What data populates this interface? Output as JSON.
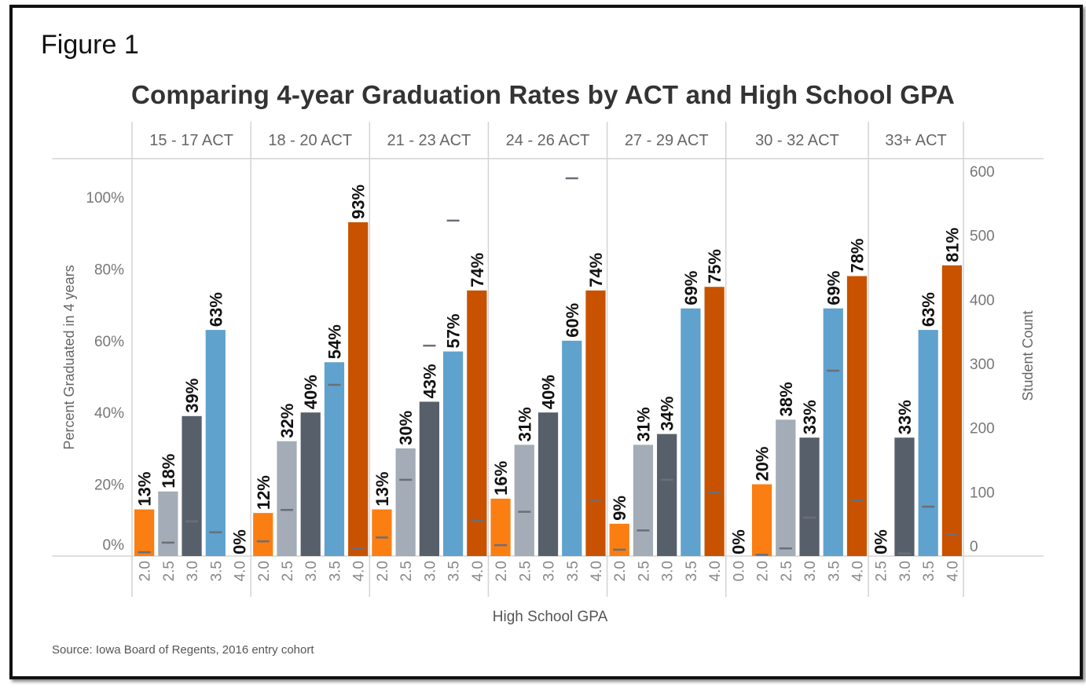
{
  "figure_label": "Figure 1",
  "source": "Source: Iowa Board of Regents, 2016 entry cohort",
  "chart_data": {
    "type": "bar",
    "title": "Comparing 4-year Graduation Rates by ACT and High School GPA",
    "xlabel": "High School GPA",
    "ylabel": "Percent Graduated in 4 years",
    "y2label": "Student Count",
    "ylim": [
      0,
      100
    ],
    "y2lim": [
      0,
      600
    ],
    "yticks": [
      "0%",
      "20%",
      "40%",
      "60%",
      "80%",
      "100%"
    ],
    "y2ticks": [
      "0",
      "100",
      "200",
      "300",
      "400",
      "500",
      "600"
    ],
    "colors": {
      "0.0": "#f97e16",
      "2.0": "#fb7e13",
      "2.5": "#a3acb7",
      "3.0": "#575f6b",
      "3.5": "#5fa2ce",
      "4.0": "#c85200",
      "count_marker": "#6b6f75"
    },
    "panels": [
      {
        "label": "15 - 17 ACT",
        "gpa": [
          "2.0",
          "2.5",
          "3.0",
          "3.5",
          "4.0"
        ],
        "percent": [
          13,
          18,
          39,
          63,
          0
        ],
        "percent_labels": [
          "13%",
          "18%",
          "39%",
          "63%",
          "0%"
        ],
        "student_count": [
          6,
          21,
          54,
          37,
          0
        ]
      },
      {
        "label": "18 - 20 ACT",
        "gpa": [
          "2.0",
          "2.5",
          "3.0",
          "3.5",
          "4.0"
        ],
        "percent": [
          12,
          32,
          40,
          54,
          93
        ],
        "percent_labels": [
          "12%",
          "32%",
          "40%",
          "54%",
          "93%"
        ],
        "student_count": [
          23,
          72,
          null,
          267,
          12
        ]
      },
      {
        "label": "21 - 23 ACT",
        "gpa": [
          "2.0",
          "2.5",
          "3.0",
          "3.5",
          "4.0"
        ],
        "percent": [
          13,
          30,
          43,
          57,
          74
        ],
        "percent_labels": [
          "13%",
          "30%",
          "43%",
          "57%",
          "74%"
        ],
        "student_count": [
          29,
          119,
          328,
          523,
          55
        ]
      },
      {
        "label": "24 - 26 ACT",
        "gpa": [
          "2.0",
          "2.5",
          "3.0",
          "3.5",
          "4.0"
        ],
        "percent": [
          16,
          31,
          40,
          60,
          74
        ],
        "percent_labels": [
          "16%",
          "31%",
          "40%",
          "60%",
          "74%"
        ],
        "student_count": [
          17,
          69,
          275,
          589,
          86
        ]
      },
      {
        "label": "27 - 29 ACT",
        "gpa": [
          "2.0",
          "2.5",
          "3.0",
          "3.5",
          "4.0"
        ],
        "percent": [
          9,
          31,
          34,
          69,
          75
        ],
        "percent_labels": [
          "9%",
          "31%",
          "34%",
          "69%",
          "75%"
        ],
        "student_count": [
          10,
          40,
          119,
          null,
          99
        ]
      },
      {
        "label": "30 - 32 ACT",
        "gpa": [
          "0.0",
          "2.0",
          "2.5",
          "3.0",
          "3.5",
          "4.0"
        ],
        "percent": [
          0,
          20,
          38,
          33,
          69,
          78
        ],
        "percent_labels": [
          "0%",
          "20%",
          "38%",
          "33%",
          "69%",
          "78%"
        ],
        "student_count": [
          0,
          2,
          12,
          60,
          289,
          87
        ]
      },
      {
        "label": "33+ ACT",
        "gpa": [
          "2.5",
          "3.0",
          "3.5",
          "4.0"
        ],
        "percent": [
          0,
          33,
          63,
          81
        ],
        "percent_labels": [
          "0%",
          "33%",
          "63%",
          "81%"
        ],
        "student_count": [
          0,
          4,
          77,
          34
        ]
      }
    ]
  }
}
